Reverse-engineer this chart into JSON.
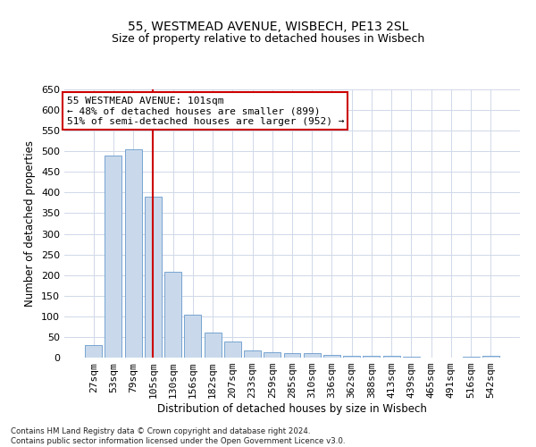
{
  "title1": "55, WESTMEAD AVENUE, WISBECH, PE13 2SL",
  "title2": "Size of property relative to detached houses in Wisbech",
  "xlabel": "Distribution of detached houses by size in Wisbech",
  "ylabel": "Number of detached properties",
  "footnote": "Contains HM Land Registry data © Crown copyright and database right 2024.\nContains public sector information licensed under the Open Government Licence v3.0.",
  "categories": [
    "27sqm",
    "53sqm",
    "79sqm",
    "105sqm",
    "130sqm",
    "156sqm",
    "182sqm",
    "207sqm",
    "233sqm",
    "259sqm",
    "285sqm",
    "310sqm",
    "336sqm",
    "362sqm",
    "388sqm",
    "413sqm",
    "439sqm",
    "465sqm",
    "491sqm",
    "516sqm",
    "542sqm"
  ],
  "values": [
    31,
    490,
    505,
    390,
    208,
    105,
    60,
    40,
    18,
    14,
    11,
    10,
    6,
    5,
    5,
    5,
    2,
    1,
    0,
    2,
    4
  ],
  "bar_color": "#c9d9eb",
  "bar_edge_color": "#6699cc",
  "vline_x": 3,
  "vline_color": "#cc0000",
  "annotation_text": "55 WESTMEAD AVENUE: 101sqm\n← 48% of detached houses are smaller (899)\n51% of semi-detached houses are larger (952) →",
  "annotation_box_color": "#ffffff",
  "annotation_box_edge": "#cc0000",
  "ylim": [
    0,
    650
  ],
  "yticks": [
    0,
    50,
    100,
    150,
    200,
    250,
    300,
    350,
    400,
    450,
    500,
    550,
    600,
    650
  ],
  "background_color": "#ffffff",
  "grid_color": "#d0d8e8",
  "title1_fontsize": 10,
  "title2_fontsize": 9,
  "xlabel_fontsize": 8.5,
  "ylabel_fontsize": 8.5,
  "tick_fontsize": 8,
  "annot_fontsize": 8
}
